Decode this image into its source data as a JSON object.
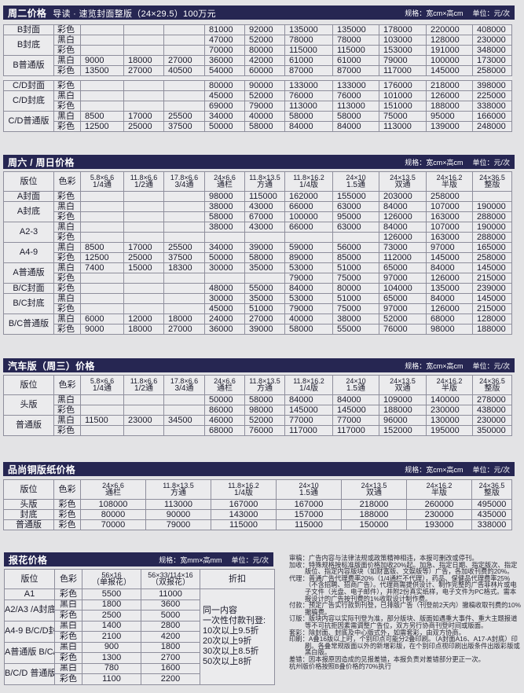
{
  "colors": {
    "bar": "#262652",
    "page": "#e3e3e5",
    "cell": "#ebebed"
  },
  "sizes10": [
    [
      "5.8×6.6",
      "1/4通"
    ],
    [
      "11.8×6.6",
      "1/2通"
    ],
    [
      "17.8×6.6",
      "3/4通"
    ],
    [
      "24×6.6",
      "通栏"
    ],
    [
      "11.8×13.5",
      "方通"
    ],
    [
      "11.8×16.2",
      "1/4版"
    ],
    [
      "24×10",
      "1.5通"
    ],
    [
      "24×13.5",
      "双通"
    ],
    [
      "24×16.2",
      "半版"
    ],
    [
      "24×36.5",
      "整版"
    ]
  ],
  "sizes7": [
    [
      "24×6.6",
      "通栏"
    ],
    [
      "11.8×13.5",
      "方通"
    ],
    [
      "11.8×16.2",
      "1/4版"
    ],
    [
      "24×10",
      "1.5通"
    ],
    [
      "24×13.5",
      "双通"
    ],
    [
      "24×16.2",
      "半版"
    ],
    [
      "24×36.5",
      "整版"
    ]
  ],
  "hdr": {
    "position": "版位",
    "color": "色彩"
  },
  "s1": {
    "title": "周二价格",
    "subtitle": "导读 · 速览封面整版（24×29.5）100万元",
    "spec": "规格：宽cm×高cm",
    "unit": "单位：元/次",
    "groups": [
      {
        "position": "B封面",
        "rows": [
          {
            "color": "彩色",
            "values": [
              "",
              "",
              "",
              "81000",
              "92000",
              "135000",
              "135000",
              "178000",
              "220000",
              "408000"
            ]
          }
        ]
      },
      {
        "position": "B封底",
        "rows": [
          {
            "color": "黑白",
            "values": [
              "",
              "",
              "",
              "47000",
              "52000",
              "78000",
              "78000",
              "103000",
              "128000",
              "230000"
            ]
          },
          {
            "color": "彩色",
            "values": [
              "",
              "",
              "",
              "70000",
              "80000",
              "115000",
              "115000",
              "153000",
              "191000",
              "348000"
            ]
          }
        ]
      },
      {
        "position": "B普通版",
        "rows": [
          {
            "color": "黑白",
            "values": [
              "9000",
              "18000",
              "27000",
              "36000",
              "42000",
              "61000",
              "61000",
              "79000",
              "100000",
              "173000"
            ]
          },
          {
            "color": "彩色",
            "values": [
              "13500",
              "27000",
              "40500",
              "54000",
              "60000",
              "87000",
              "87000",
              "117000",
              "145000",
              "258000"
            ]
          }
        ]
      },
      {
        "spacer": true
      },
      {
        "position": "C/D封面",
        "rows": [
          {
            "color": "彩色",
            "values": [
              "",
              "",
              "",
              "80000",
              "90000",
              "133000",
              "133000",
              "176000",
              "218000",
              "398000"
            ]
          }
        ]
      },
      {
        "position": "C/D封底",
        "rows": [
          {
            "color": "黑白",
            "values": [
              "",
              "",
              "",
              "45000",
              "52000",
              "76000",
              "76000",
              "101000",
              "126000",
              "225000"
            ]
          },
          {
            "color": "彩色",
            "values": [
              "",
              "",
              "",
              "69000",
              "79000",
              "113000",
              "113000",
              "151000",
              "188000",
              "338000"
            ]
          }
        ]
      },
      {
        "position": "C/D普通版",
        "rows": [
          {
            "color": "黑白",
            "values": [
              "8500",
              "17000",
              "25500",
              "34000",
              "40000",
              "58000",
              "58000",
              "75000",
              "95000",
              "166000"
            ]
          },
          {
            "color": "彩色",
            "values": [
              "12500",
              "25000",
              "37500",
              "50000",
              "58000",
              "84000",
              "84000",
              "113000",
              "139000",
              "248000"
            ]
          }
        ]
      }
    ]
  },
  "s2": {
    "title": "周六 / 周日价格",
    "spec": "规格：宽cm×高cm",
    "unit": "单位：元/次",
    "groups": [
      {
        "position": "A封面",
        "rows": [
          {
            "color": "彩色",
            "values": [
              "",
              "",
              "",
              "98000",
              "115000",
              "162000",
              "155000",
              "203000",
              "258000",
              ""
            ]
          }
        ]
      },
      {
        "position": "A封底",
        "rows": [
          {
            "color": "黑白",
            "values": [
              "",
              "",
              "",
              "38000",
              "43000",
              "66000",
              "63000",
              "84000",
              "107000",
              "190000"
            ]
          },
          {
            "color": "彩色",
            "values": [
              "",
              "",
              "",
              "58000",
              "67000",
              "100000",
              "95000",
              "126000",
              "163000",
              "288000"
            ]
          }
        ]
      },
      {
        "position": "A2-3",
        "rows": [
          {
            "color": "黑白",
            "values": [
              "",
              "",
              "",
              "38000",
              "43000",
              "66000",
              "63000",
              "84000",
              "107000",
              "190000"
            ]
          },
          {
            "color": "彩色",
            "values": [
              "",
              "",
              "",
              "",
              "",
              "",
              "",
              "126000",
              "163000",
              "288000"
            ]
          }
        ]
      },
      {
        "position": "A4-9",
        "rows": [
          {
            "color": "黑白",
            "values": [
              "8500",
              "17000",
              "25500",
              "34000",
              "39000",
              "59000",
              "56000",
              "73000",
              "97000",
              "165000"
            ]
          },
          {
            "color": "彩色",
            "values": [
              "12500",
              "25000",
              "37500",
              "50000",
              "58000",
              "89000",
              "85000",
              "112000",
              "145000",
              "258000"
            ]
          }
        ]
      },
      {
        "position": "A普通版",
        "rows": [
          {
            "color": "黑白",
            "values": [
              "7400",
              "15000",
              "18300",
              "30000",
              "35000",
              "53000",
              "51000",
              "65000",
              "84000",
              "145000"
            ]
          },
          {
            "color": "彩色",
            "values": [
              "",
              "",
              "",
              "",
              "",
              "79000",
              "75000",
              "97000",
              "126000",
              "215000"
            ]
          }
        ]
      },
      {
        "position": "B/C封面",
        "rows": [
          {
            "color": "彩色",
            "values": [
              "",
              "",
              "",
              "48000",
              "55000",
              "84000",
              "80000",
              "104000",
              "135000",
              "239000"
            ]
          }
        ]
      },
      {
        "position": "B/C封底",
        "rows": [
          {
            "color": "黑白",
            "values": [
              "",
              "",
              "",
              "30000",
              "35000",
              "53000",
              "51000",
              "65000",
              "84000",
              "145000"
            ]
          },
          {
            "color": "彩色",
            "values": [
              "",
              "",
              "",
              "45000",
              "51000",
              "79000",
              "75000",
              "97000",
              "126000",
              "215000"
            ]
          }
        ]
      },
      {
        "position": "B/C普通版",
        "rows": [
          {
            "color": "黑白",
            "values": [
              "6000",
              "12000",
              "18000",
              "24000",
              "27000",
              "40000",
              "38000",
              "52000",
              "68000",
              "128000"
            ]
          },
          {
            "color": "彩色",
            "values": [
              "9000",
              "18000",
              "27000",
              "36000",
              "39000",
              "58000",
              "55000",
              "76000",
              "98000",
              "188000"
            ]
          }
        ]
      }
    ]
  },
  "s3": {
    "title": "汽车版（周三）价格",
    "spec": "规格：宽cm×高cm",
    "unit": "单位：元/次",
    "groups": [
      {
        "position": "头版",
        "rows": [
          {
            "color": "黑白",
            "values": [
              "",
              "",
              "",
              "50000",
              "58000",
              "84000",
              "84000",
              "109000",
              "140000",
              "278000"
            ]
          },
          {
            "color": "彩色",
            "values": [
              "",
              "",
              "",
              "86000",
              "98000",
              "145000",
              "145000",
              "188000",
              "230000",
              "438000"
            ]
          }
        ]
      },
      {
        "position": "普通版",
        "rows": [
          {
            "color": "黑白",
            "values": [
              "11500",
              "23000",
              "34500",
              "46000",
              "52000",
              "77000",
              "77000",
              "96000",
              "130000",
              "230000"
            ]
          },
          {
            "color": "彩色",
            "values": [
              "",
              "",
              "",
              "68000",
              "76000",
              "117000",
              "117000",
              "152000",
              "195000",
              "350000"
            ]
          }
        ]
      }
    ]
  },
  "s4": {
    "title": "品尚铜版纸价格",
    "spec": "规格：宽cm×高cm",
    "unit": "单位：元/次",
    "groups": [
      {
        "position": "头版",
        "rows": [
          {
            "color": "彩色",
            "values": [
              "108000",
              "113000",
              "167000",
              "167000",
              "218000",
              "260000",
              "495000"
            ]
          }
        ]
      },
      {
        "position": "封底",
        "rows": [
          {
            "color": "彩色",
            "values": [
              "80000",
              "90000",
              "143000",
              "157000",
              "188000",
              "230000",
              "435000"
            ]
          }
        ]
      },
      {
        "position": "普通版",
        "rows": [
          {
            "color": "彩色",
            "values": [
              "70000",
              "79000",
              "115000",
              "115000",
              "150000",
              "193000",
              "338000"
            ]
          }
        ]
      }
    ]
  },
  "s5": {
    "title": "报花价格",
    "spec": "规格：宽mm×高mm",
    "unit": "单位：元/次",
    "headers": [
      [
        "56×16",
        "（单报花）"
      ],
      [
        "56×33/114×16",
        "（双报花）"
      ]
    ],
    "discount_header": "折扣",
    "discount": [
      "同一内容",
      "一次性付款刊登:",
      "10次以上9.5折",
      "20次以上9折",
      "30次以上8.5折",
      "50次以上8折"
    ],
    "groups": [
      {
        "position": "A1",
        "rows": [
          {
            "color": "彩色",
            "values": [
              "5500",
              "11000"
            ]
          }
        ]
      },
      {
        "position": "A2/A3 /A封底",
        "rows": [
          {
            "color": "黑白",
            "values": [
              "1800",
              "3600"
            ]
          },
          {
            "color": "彩色",
            "values": [
              "2500",
              "5000"
            ]
          }
        ]
      },
      {
        "position": "A4-9 B/C/D封面",
        "rows": [
          {
            "color": "黑白",
            "values": [
              "1400",
              "2800"
            ]
          },
          {
            "color": "彩色",
            "values": [
              "2100",
              "4200"
            ]
          }
        ]
      },
      {
        "position": "A普通版 B/C/D封底",
        "rows": [
          {
            "color": "黑白",
            "values": [
              "900",
              "1800"
            ]
          },
          {
            "color": "彩色",
            "values": [
              "1300",
              "2700"
            ]
          }
        ]
      },
      {
        "position": "B/C/D 普通版",
        "rows": [
          {
            "color": "黑白",
            "values": [
              "780",
              "1600"
            ]
          },
          {
            "color": "彩色",
            "values": [
              "1100",
              "2200"
            ]
          }
        ]
      }
    ]
  },
  "notes": [
    "审稿：广告内容与法律法规或政策精神相违，本报可删改或停刊。",
    "加收：特殊规格按标准版面价格加收20%起。加急、指定日期、指定版次、指定版位、指定内容版块（如财富版、文娱版等）广告，各加收刊费的20%。",
    "代理：普通广告代理费率20%（1/4通栏不代理），药品、保健品代理费率25%（不含招聘、招商广告）。代理商需提供设计、制作完整的广告菲林片或电子文件（光盘、电子邮件），并附2份真实纸样，电子文件为PC格式。需本报设计的广告按刊费的1%收取设计制作费。",
    "付款：预定广告实行款到刊登，已排版广告（刊登前2天内）撤稿收取刊费的10%撤稿费。",
    "订版：版块内容以实际刊登为准，部分版块、版面如遇重大事件、重大主题报道等不可抗拒因素需调整广告位，双方另行协商刊登时间或版面。",
    "套彩：除封面、封底及中心版式外，如需套彩，由双方协商。",
    "印刷：A叠16版以上时，个别印点可能分2叠印刷。（A封面A16、A17-A封底）印刷。各叠常规版面以外的新增彩版，在个别印点视印刷出版条件出版彩版或黑白版。",
    "差错：因本报原因造成的见报差错，本报负责对差错部分更正一次。",
    "杭州版价格按照B叠价格的70%执行"
  ]
}
